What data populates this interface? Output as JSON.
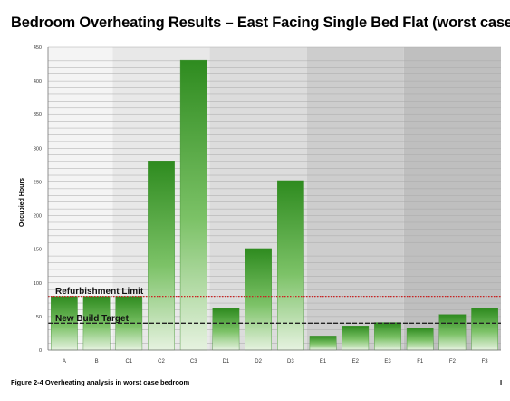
{
  "title": "Bedroom Overheating Results – East Facing Single Bed Flat (worst case)",
  "caption": "Figure 2-4  Overheating analysis in worst case  bedroom",
  "page_number": "I",
  "colors": {
    "bar_dark": "#2e8b1f",
    "bar_light": "#e6f2e0",
    "refurb_line": "#cc2222",
    "target_line": "#222222"
  },
  "chart_data": {
    "type": "bar",
    "ylabel": "Occupied Hours",
    "xlabel": "",
    "ylim": [
      0,
      450
    ],
    "yticks": [
      0,
      50,
      100,
      150,
      200,
      250,
      300,
      350,
      400,
      450
    ],
    "grid": true,
    "categories": [
      "A",
      "B",
      "C1",
      "C2",
      "C3",
      "D1",
      "D2",
      "D3",
      "E1",
      "E2",
      "E3",
      "F1",
      "F2",
      "F3"
    ],
    "values": [
      80,
      80,
      80,
      280,
      431,
      62,
      151,
      252,
      21,
      36,
      41,
      33,
      53,
      62
    ],
    "bands": [
      {
        "categories": [
          "A",
          "B"
        ],
        "fill": "#f4f4f4"
      },
      {
        "categories": [
          "C1",
          "C2",
          "C3"
        ],
        "fill": "#e8e8e8"
      },
      {
        "categories": [
          "D1",
          "D2",
          "D3"
        ],
        "fill": "#dcdcdc"
      },
      {
        "categories": [
          "E1",
          "E2",
          "E3"
        ],
        "fill": "#cdcdcd"
      },
      {
        "categories": [
          "F1",
          "F2",
          "F3"
        ],
        "fill": "#bfbfbf"
      }
    ],
    "reference_lines": [
      {
        "label": "Refurbishment Limit",
        "value": 80,
        "style": "dotted",
        "color": "#cc2222"
      },
      {
        "label": "New Build Target",
        "value": 40,
        "style": "dashed",
        "color": "#222222"
      }
    ]
  }
}
